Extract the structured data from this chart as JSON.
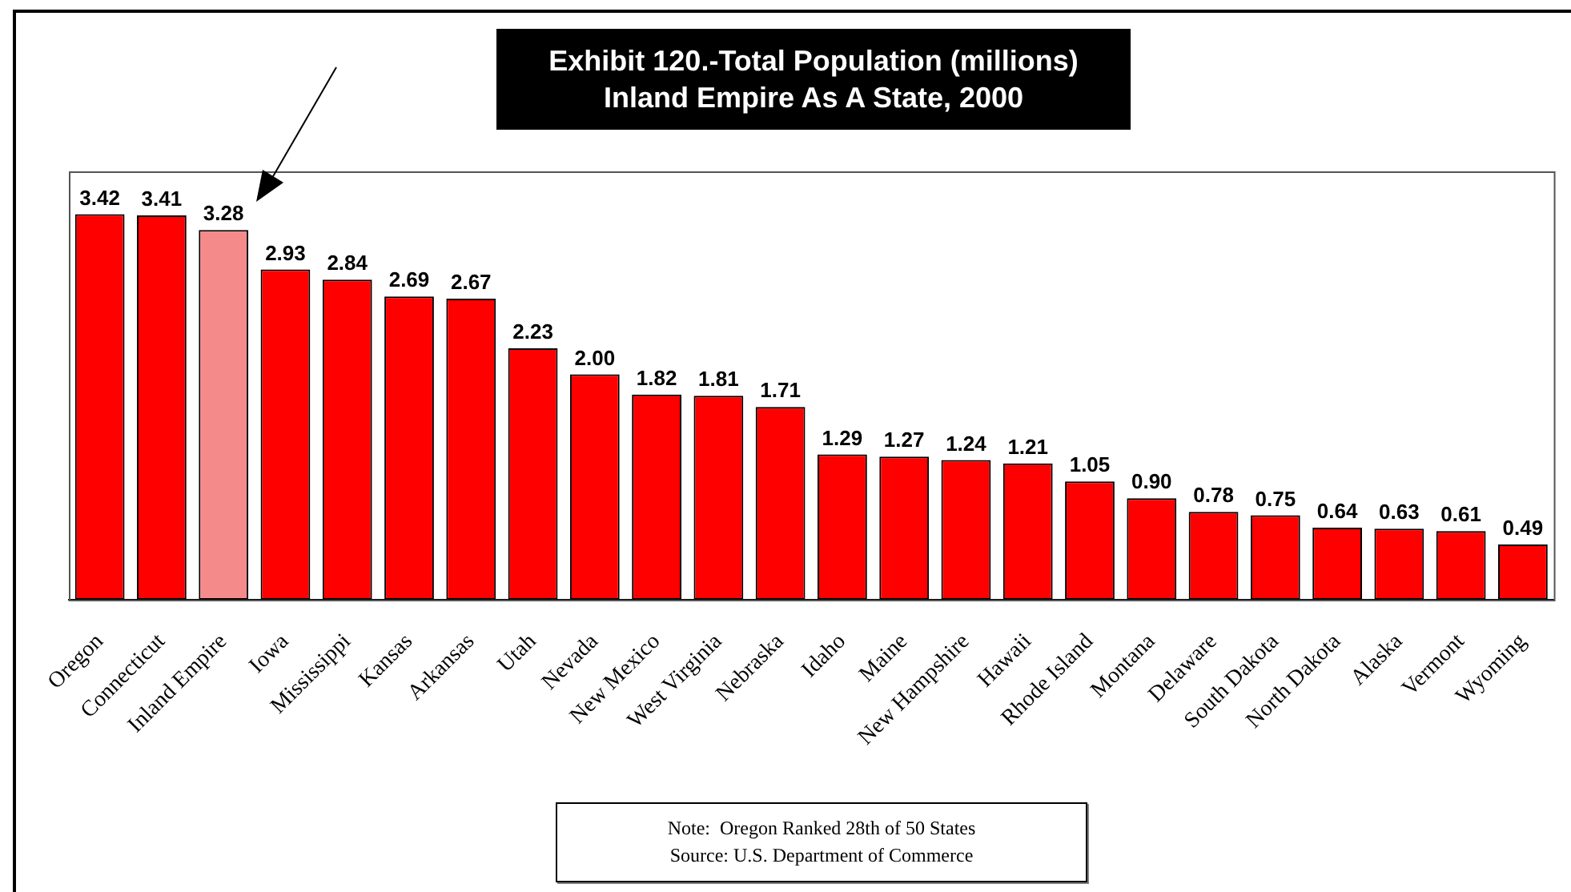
{
  "chart_data": {
    "type": "bar",
    "title": "Exhibit 120.-Total Population (millions)",
    "subtitle": "Inland Empire As A State, 2000",
    "categories": [
      "Oregon",
      "Connecticut",
      "Inland Empire",
      "Iowa",
      "Mississippi",
      "Kansas",
      "Arkansas",
      "Utah",
      "Nevada",
      "New Mexico",
      "West Virginia",
      "Nebraska",
      "Idaho",
      "Maine",
      "New Hampshire",
      "Hawaii",
      "Rhode Island",
      "Montana",
      "Delaware",
      "South Dakota",
      "North Dakota",
      "Alaska",
      "Vermont",
      "Wyoming"
    ],
    "values": [
      3.42,
      3.41,
      3.28,
      2.93,
      2.84,
      2.69,
      2.67,
      2.23,
      2.0,
      1.82,
      1.81,
      1.71,
      1.29,
      1.27,
      1.24,
      1.21,
      1.05,
      0.9,
      0.78,
      0.75,
      0.64,
      0.63,
      0.61,
      0.49
    ],
    "value_labels": [
      "3.42",
      "3.41",
      "3.28",
      "2.93",
      "2.84",
      "2.69",
      "2.67",
      "2.23",
      "2.00",
      "1.82",
      "1.81",
      "1.71",
      "1.29",
      "1.27",
      "1.24",
      "1.21",
      "1.05",
      "0.90",
      "0.78",
      "0.75",
      "0.64",
      "0.63",
      "0.61",
      "0.49"
    ],
    "colors": [
      "#ff0000",
      "#ff0000",
      "#f58a8a",
      "#ff0000",
      "#ff0000",
      "#ff0000",
      "#ff0000",
      "#ff0000",
      "#ff0000",
      "#ff0000",
      "#ff0000",
      "#ff0000",
      "#ff0000",
      "#ff0000",
      "#ff0000",
      "#ff0000",
      "#ff0000",
      "#ff0000",
      "#ff0000",
      "#ff0000",
      "#ff0000",
      "#ff0000",
      "#ff0000",
      "#ff0000"
    ],
    "ylim": [
      0,
      3.8
    ],
    "tick_labels": "x",
    "grid": false,
    "annotations": [
      "Note:  Oregon Ranked 28th of 50 States",
      "Source: U.S. Department of Commerce"
    ]
  }
}
